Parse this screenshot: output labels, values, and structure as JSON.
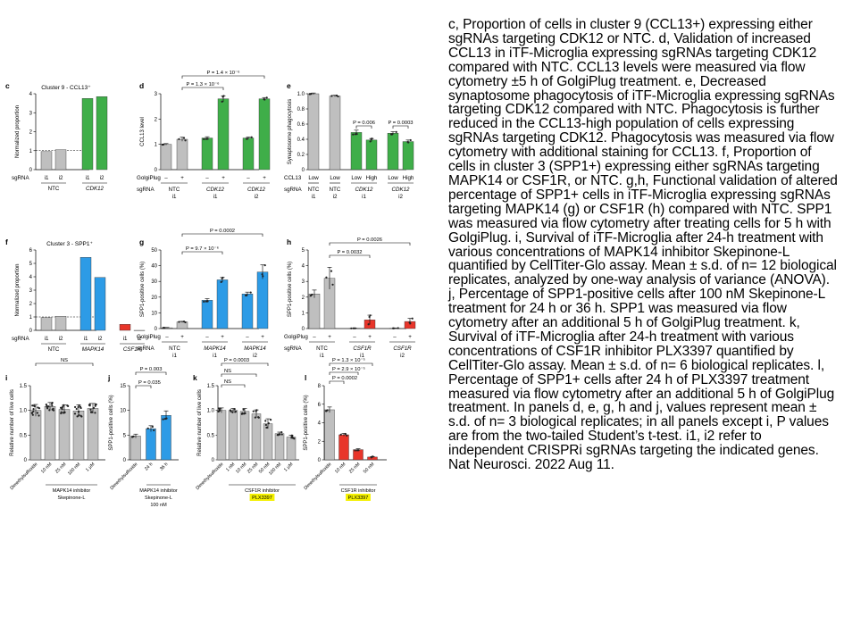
{
  "caption": {
    "text": "c, Proportion of cells in cluster 9 (CCL13+) expressing either sgRNAs targeting CDK12 or NTC. d, Validation of increased CCL13 in iTF-Microglia expressing sgRNAs targeting CDK12 compared with NTC. CCL13 levels were measured via flow cytometry ±5 h of GolgiPlug treatment. e, Decreased synaptosome phagocytosis of iTF-Microglia expressing sgRNAs targeting CDK12 compared with NTC. Phagocytosis is further reduced in the CCL13-high population of cells expressing sgRNAs targeting CDK12. Phagocytosis was measured via flow cytometry with additional staining for CCL13. f, Proportion of cells in cluster 3 (SPP1+) expressing either sgRNAs targeting MAPK14 or CSF1R, or NTC. g,h, Functional validation of altered percentage of SPP1+ cells in iTF-Microglia expressing sgRNAs targeting MAPK14 (g) or CSF1R (h) compared with NTC. SPP1 was measured via flow cytometry after treating cells for 5 h with GolgiPlug. i, Survival of iTF-Microglia after 24-h treatment with various concentrations of MAPK14 inhibitor Skepinone-L quantified by CellTiter-Glo assay. Mean ± s.d. of n= 12 biological replicates, analyzed by one-way analysis of variance (ANOVA). j, Percentage of SPP1-positive cells after 100 nM Skepinone-L treatment for 24 h or 36 h. SPP1 was measured via flow cytometry after an additional 5 h of GolgiPlug treatment. k, Survival of iTF-Microglia after 24-h treatment with various concentrations of CSF1R inhibitor PLX3397 quantified by CellTiter-Glo assay. Mean ± s.d. of n= 6 biological replicates. l, Percentage of SPP1+ cells after 24 h of PLX3397 treatment measured via flow cytometry after an additional 5 h of GolgiPlug treatment. In panels d, e, g, h and j, values represent mean ± s.d. of n= 3 biological replicates; in all panels except i, P values are from the two-tailed Student’s t-test. i1, i2 refer to independent CRISPRi sgRNAs targeting the indicated genes. Nat Neurosci. 2022 Aug 11."
  },
  "colors": {
    "gray": "#bfbfbf",
    "green": "#3fae49",
    "blue": "#2d9be6",
    "red": "#e8352a",
    "highlight": "#f4f000"
  },
  "chart_data": [
    {
      "id": "c",
      "type": "bar",
      "letter": "c",
      "title": "Cluster 9 - CCL13⁺",
      "ylabel": "Normalized proportion",
      "ylim": [
        0,
        4
      ],
      "yticks": [
        "0",
        "1",
        "2",
        "3",
        "4"
      ],
      "refline": 1,
      "row1_label": "sgRNA",
      "categories": [
        "i1",
        "i2",
        "i1",
        "i2"
      ],
      "colors": [
        "gray",
        "gray",
        "green",
        "green"
      ],
      "values": [
        0.95,
        1.05,
        3.75,
        3.85
      ],
      "groups": [
        {
          "label": "NTC",
          "italic": false
        },
        {
          "label": "CDK12",
          "italic": true
        }
      ],
      "stats": [
        {
          "text": ""
        }
      ]
    },
    {
      "id": "d",
      "type": "bar",
      "letter": "d",
      "title": "",
      "ylabel": "CCL13 level",
      "ylim": [
        0,
        3
      ],
      "yticks": [
        "0",
        "1",
        "2",
        "3"
      ],
      "row1_label": "GolgiPlug",
      "row2_label": "sgRNA",
      "categories": [
        "–",
        "+",
        "–",
        "+",
        "–",
        "+"
      ],
      "colors": [
        "gray",
        "gray",
        "green",
        "green",
        "green",
        "green"
      ],
      "values": [
        1.0,
        1.2,
        1.25,
        2.8,
        1.25,
        2.8
      ],
      "errors": [
        0.03,
        0.08,
        0.05,
        0.12,
        0.04,
        0.05
      ],
      "groups": [
        {
          "label": "NTC",
          "sub": "i1",
          "italic": false
        },
        {
          "label": "CDK12",
          "sub": "i1",
          "italic": true
        },
        {
          "label": "CDK12",
          "sub": "i2",
          "italic": true
        }
      ],
      "stats": [
        {
          "text": "P = 1.4 × 10⁻⁶"
        },
        {
          "text": "P = 1.3 × 10⁻⁶"
        }
      ]
    },
    {
      "id": "e",
      "type": "bar",
      "letter": "e",
      "title": "",
      "ylabel": "Synaptosome phagocytosis",
      "ylim": [
        0,
        1.0
      ],
      "yticks": [
        "0",
        "0.2",
        "0.4",
        "0.6",
        "0.8",
        "1.0"
      ],
      "row1_label": "CCL13",
      "row2_label": "sgRNA",
      "categories": [
        "Low",
        "Low",
        "Low",
        "High",
        "Low",
        "High"
      ],
      "colors": [
        "gray",
        "gray",
        "green",
        "green",
        "green",
        "green"
      ],
      "values": [
        1.0,
        0.97,
        0.49,
        0.39,
        0.48,
        0.37
      ],
      "errors": [
        0.01,
        0.01,
        0.03,
        0.02,
        0.02,
        0.02
      ],
      "groups": [
        {
          "label": "NTC",
          "sub": "i1",
          "italic": false
        },
        {
          "label": "NTC",
          "sub": "i2",
          "italic": false
        },
        {
          "label": "CDK12",
          "sub": "i1",
          "italic": true
        },
        {
          "label": "CDK12",
          "sub": "i2",
          "italic": true
        }
      ],
      "stats": [
        {
          "text": "P = 0.006"
        },
        {
          "text": "P = 0.0003"
        }
      ]
    },
    {
      "id": "f",
      "type": "bar",
      "letter": "f",
      "title": "Cluster 3 - SPP1⁺",
      "ylabel": "Normalized proportion",
      "ylim": [
        0,
        6
      ],
      "yticks": [
        "0",
        "1",
        "2",
        "3",
        "4",
        "5",
        "6"
      ],
      "refline": 1,
      "row1_label": "sgRNA",
      "categories": [
        "i1",
        "i2",
        "i1",
        "i2",
        "i1",
        "i2"
      ],
      "colors": [
        "gray",
        "gray",
        "blue",
        "blue",
        "red",
        "red"
      ],
      "values": [
        0.95,
        1.05,
        5.45,
        3.95,
        0.45,
        0
      ],
      "groups": [
        {
          "label": "NTC",
          "italic": false
        },
        {
          "label": "MAPK14",
          "italic": true
        },
        {
          "label": "CSF1R",
          "italic": true
        }
      ],
      "stats": [
        {
          "text": ""
        }
      ]
    },
    {
      "id": "g",
      "type": "bar",
      "letter": "g",
      "title": "",
      "ylabel": "SPP1-positive cells (%)",
      "ylim": [
        0,
        50
      ],
      "yticks": [
        "0",
        "10",
        "20",
        "30",
        "40",
        "50"
      ],
      "row1_label": "GolgiPlug",
      "row2_label": "sgRNA",
      "categories": [
        "–",
        "+",
        "–",
        "+",
        "–",
        "+"
      ],
      "colors": [
        "gray",
        "gray",
        "blue",
        "blue",
        "blue",
        "blue"
      ],
      "values": [
        0.5,
        4.2,
        18,
        31,
        22,
        36
      ],
      "errors": [
        0.2,
        0.4,
        1.0,
        1.5,
        1.2,
        4.5
      ],
      "groups": [
        {
          "label": "NTC",
          "sub": "i1",
          "italic": false
        },
        {
          "label": "MAPK14",
          "sub": "i1",
          "italic": true
        },
        {
          "label": "MAPK14",
          "sub": "i2",
          "italic": true
        }
      ],
      "stats": [
        {
          "text": "P = 0.0002"
        },
        {
          "text": "P = 9.7 × 10⁻⁶"
        }
      ]
    },
    {
      "id": "h",
      "type": "bar",
      "letter": "h",
      "title": "",
      "ylabel": "SPP1-positive cells (%)",
      "ylim": [
        0,
        5
      ],
      "yticks": [
        "0",
        "1",
        "2",
        "3",
        "4",
        "5"
      ],
      "row1_label": "GolgiPlug",
      "row2_label": "sgRNA",
      "categories": [
        "–",
        "+",
        "–",
        "+",
        "–",
        "+"
      ],
      "colors": [
        "gray",
        "gray",
        "red",
        "red",
        "red",
        "red"
      ],
      "values": [
        2.2,
        3.2,
        0.02,
        0.55,
        0.02,
        0.45
      ],
      "errors": [
        0.25,
        0.7,
        0.01,
        0.3,
        0.01,
        0.2
      ],
      "groups": [
        {
          "label": "NTC",
          "sub": "i1",
          "italic": false
        },
        {
          "label": "CSF1R",
          "sub": "i1",
          "italic": true
        },
        {
          "label": "CSF1R",
          "sub": "i2",
          "italic": true
        }
      ],
      "stats": [
        {
          "text": "P = 0.0026"
        },
        {
          "text": "P = 0.0032"
        }
      ]
    },
    {
      "id": "i",
      "type": "bar",
      "letter": "i",
      "title": "",
      "ylabel": "Relative number of live cells",
      "ylim": [
        0,
        1.5
      ],
      "yticks": [
        "0",
        "0.5",
        "1.0",
        "1.5"
      ],
      "categories": [
        "Dimethylsulfoxide",
        "10 nM",
        "25 nM",
        "100 nM",
        "1 μM"
      ],
      "colors": [
        "gray",
        "gray",
        "gray",
        "gray",
        "gray"
      ],
      "values": [
        1.0,
        1.08,
        1.02,
        0.99,
        1.04
      ],
      "errors": [
        0.12,
        0.08,
        0.09,
        0.12,
        0.1
      ],
      "bracket_label": "MAPK14 inhibitor",
      "drug": "Skepinone-L",
      "drug_highlight": false,
      "stats": [
        {
          "text": "NS"
        }
      ]
    },
    {
      "id": "j",
      "type": "bar",
      "letter": "j",
      "title": "",
      "ylabel": "SPP1-positive cells (%)",
      "ylim": [
        0,
        15
      ],
      "yticks": [
        "0",
        "5",
        "10",
        "15"
      ],
      "categories": [
        "Dimethylsulfoxide",
        "24 h",
        "36 h"
      ],
      "colors": [
        "gray",
        "blue",
        "blue"
      ],
      "values": [
        4.8,
        6.3,
        9.0
      ],
      "errors": [
        0.4,
        0.6,
        0.9
      ],
      "bracket_label": "MAPK14 inhibitor",
      "drug": "Skepinone-L",
      "dose": "100 nM",
      "drug_highlight": false,
      "stats": [
        {
          "text": "P = 0.003"
        },
        {
          "text": "P = 0.035"
        }
      ]
    },
    {
      "id": "k",
      "type": "bar",
      "letter": "k",
      "title": "",
      "ylabel": "Relative number of live cells",
      "ylim": [
        0,
        1.5
      ],
      "yticks": [
        "0",
        "0.5",
        "1.0",
        "1.5"
      ],
      "categories": [
        "Dimethylsulfoxide",
        "1 nM",
        "10 nM",
        "25 nM",
        "50 nM",
        "100 nM",
        "1 μM"
      ],
      "colors": [
        "gray",
        "gray",
        "gray",
        "gray",
        "gray",
        "gray",
        "gray"
      ],
      "values": [
        1.0,
        1.0,
        0.98,
        0.93,
        0.73,
        0.53,
        0.46
      ],
      "errors": [
        0.05,
        0.04,
        0.06,
        0.08,
        0.1,
        0.03,
        0.04
      ],
      "bracket_label": "CSF1R inhibitor",
      "drug": "PLX3397",
      "drug_highlight": true,
      "stats": [
        {
          "text": "P = 0.0003"
        },
        {
          "text": "NS"
        },
        {
          "text": "NS"
        }
      ]
    },
    {
      "id": "l",
      "type": "bar",
      "letter": "l",
      "title": "",
      "ylabel": "SPP1-positive cells (%)",
      "ylim": [
        0,
        8
      ],
      "yticks": [
        "0",
        "2",
        "4",
        "6",
        "8"
      ],
      "categories": [
        "Dimethylsulfoxide",
        "10 nM",
        "25 nM",
        "50 nM"
      ],
      "colors": [
        "gray",
        "red",
        "red",
        "red"
      ],
      "values": [
        5.4,
        2.7,
        1.1,
        0.3
      ],
      "errors": [
        0.3,
        0.15,
        0.1,
        0.05
      ],
      "bracket_label": "CSF1R inhibitor",
      "drug": "PLX3397",
      "drug_highlight": true,
      "stats": [
        {
          "text": "P = 1.3 × 10⁻⁵"
        },
        {
          "text": "P = 2.9 × 10⁻⁵"
        },
        {
          "text": "P = 0.0002"
        }
      ]
    }
  ]
}
